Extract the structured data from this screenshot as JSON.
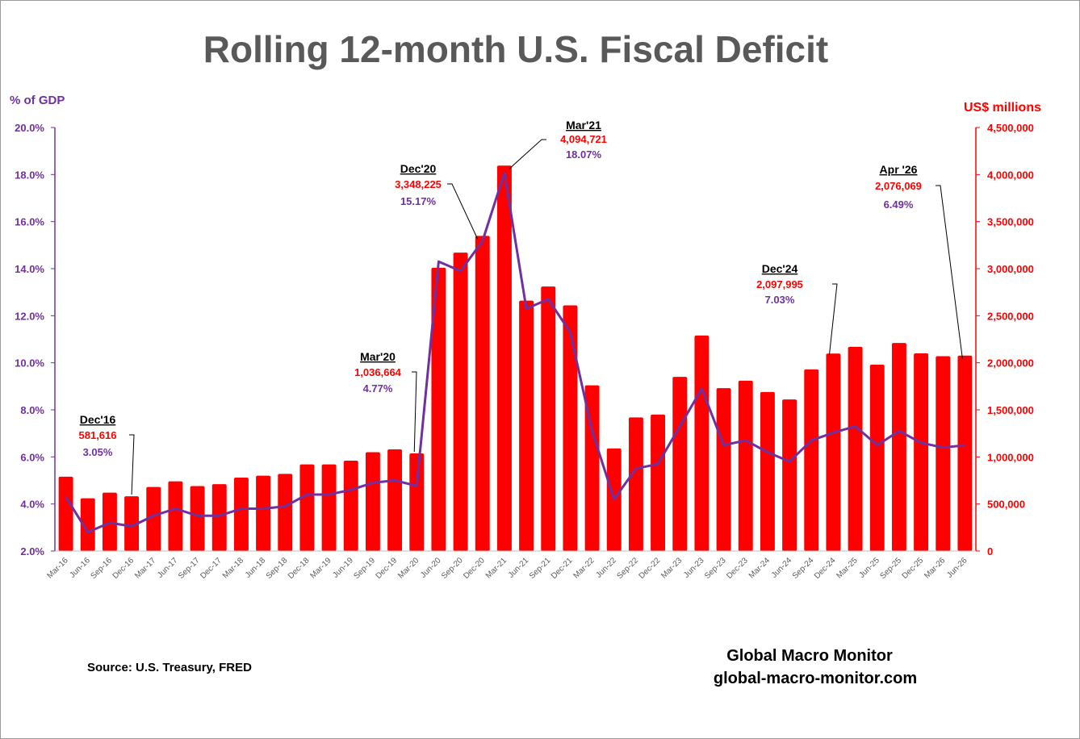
{
  "chart_data": {
    "type": "bar",
    "title": "Rolling 12-month U.S. Fiscal Deficit",
    "left_axis": {
      "label": "% of GDP",
      "range": [
        2,
        20
      ],
      "ticks": [
        "2.0%",
        "4.0%",
        "6.0%",
        "8.0%",
        "10.0%",
        "12.0%",
        "14.0%",
        "16.0%",
        "18.0%",
        "20.0%"
      ],
      "color": "#7030a0"
    },
    "right_axis": {
      "label": "US$ millions",
      "range": [
        0,
        4500000
      ],
      "ticks": [
        "0",
        "500,000",
        "1,000,000",
        "1,500,000",
        "2,000,000",
        "2,500,000",
        "3,000,000",
        "3,500,000",
        "4,000,000",
        "4,500,000"
      ],
      "color": "#ff0000"
    },
    "categories": [
      "Mar-16",
      "Jun-16",
      "Sep-16",
      "Dec-16",
      "Mar-17",
      "Jun-17",
      "Sep-17",
      "Dec-17",
      "Mar-18",
      "Jun-18",
      "Sep-18",
      "Dec-18",
      "Mar-19",
      "Jun-19",
      "Sep-19",
      "Dec-19",
      "Mar-20",
      "Jun-20",
      "Sep-20",
      "Dec-20",
      "Mar-21",
      "Jun-21",
      "Sep-21",
      "Dec-21",
      "Mar-22",
      "Jun-22",
      "Sep-22",
      "Dec-22",
      "Mar-23",
      "Jun-23",
      "Sep-23",
      "Dec-23",
      "Mar-24",
      "Jun-24",
      "Sep-24",
      "Dec-24",
      "Mar-25",
      "Jun-25",
      "Sep-25",
      "Dec-25",
      "Mar-26",
      "Jun-26"
    ],
    "series": [
      {
        "kind": "bar",
        "axis": "right",
        "color": "#ff0000",
        "values": [
          790000,
          560000,
          620000,
          581616,
          680000,
          740000,
          690000,
          710000,
          780000,
          800000,
          820000,
          920000,
          920000,
          960000,
          1050000,
          1080000,
          1036664,
          3010000,
          3170000,
          3348225,
          4094721,
          2660000,
          2810000,
          2610000,
          1760000,
          1090000,
          1420000,
          1450000,
          1850000,
          2290000,
          1730000,
          1810000,
          1690000,
          1610000,
          1930000,
          2097995,
          2170000,
          1980000,
          2210000,
          2100000,
          2070000,
          2076069
        ]
      },
      {
        "kind": "line",
        "axis": "left",
        "color": "#7030a0",
        "values": [
          4.3,
          2.8,
          3.2,
          3.05,
          3.5,
          3.8,
          3.5,
          3.5,
          3.8,
          3.8,
          3.9,
          4.4,
          4.4,
          4.6,
          4.9,
          5.0,
          4.77,
          14.3,
          13.9,
          15.17,
          18.07,
          12.3,
          12.7,
          11.3,
          7.1,
          4.2,
          5.5,
          5.7,
          7.3,
          8.9,
          6.5,
          6.7,
          6.2,
          5.8,
          6.7,
          7.03,
          7.3,
          6.5,
          7.1,
          6.6,
          6.4,
          6.49
        ]
      }
    ],
    "annotations": [
      {
        "date": "Dec'16",
        "usd": "581,616",
        "pct": "3.05%",
        "index": 3
      },
      {
        "date": "Mar'20",
        "usd": "1,036,664",
        "pct": "4.77%",
        "index": 16
      },
      {
        "date": "Dec'20",
        "usd": "3,348,225",
        "pct": "15.17%",
        "index": 19
      },
      {
        "date": "Mar'21",
        "usd": "4,094,721",
        "pct": "18.07%",
        "index": 20
      },
      {
        "date": "Dec'24",
        "usd": "2,097,995",
        "pct": "7.03%",
        "index": 35
      },
      {
        "date": "Apr '26",
        "usd": "2,076,069",
        "pct": "6.49%",
        "index": 41
      }
    ],
    "grid": false,
    "legend": "none"
  },
  "footer": {
    "source": "Source:  U.S. Treasury,  FRED",
    "brand_name": "Global Macro Monitor",
    "brand_url": "global-macro-monitor.com"
  }
}
